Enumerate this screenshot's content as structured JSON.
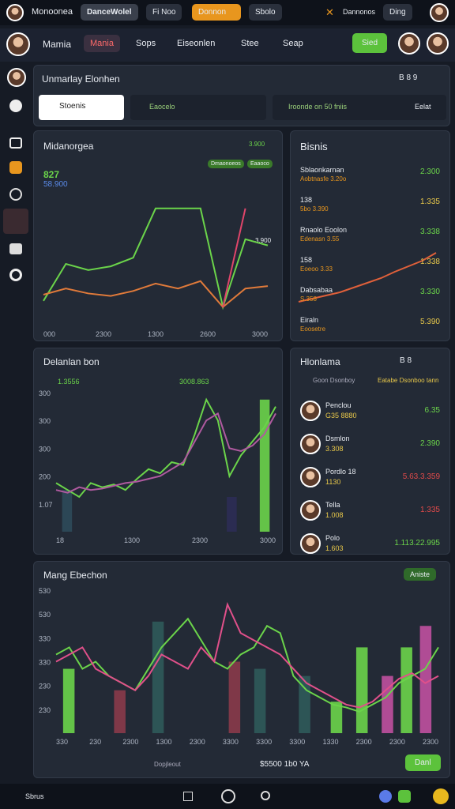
{
  "topbar": {
    "brand": "Monoonea",
    "tabs": [
      "DanceWolel",
      "Fi Noo",
      "Donnon",
      "Sbolo"
    ],
    "user": "Dannonos",
    "badge": "Ding"
  },
  "nav": {
    "items": [
      "Mamia",
      "Mania",
      "Sops",
      "Eiseonlen",
      "Stee",
      "Seap"
    ],
    "button": "Sied"
  },
  "panel": {
    "title": "Unmarlay Elonhen",
    "controls": "B 8 9",
    "dropdown": "Stoenis",
    "filter1": "Eaocelo",
    "filter2": "Iroonde on 50 fniis",
    "select": "Eelat"
  },
  "card1": {
    "title": "Midanorgea",
    "badge": "3.900",
    "legend": [
      "Dmaonoeos",
      "Eaaoco"
    ],
    "stat1": "827",
    "stat2": "58.900",
    "side_label": "3.900",
    "x_labels": [
      "000",
      "2300",
      "1300",
      "2600",
      "3000"
    ],
    "ylim": [
      0,
      100
    ],
    "xlim": [
      0,
      10
    ],
    "series": [
      {
        "color": "#6bd44a",
        "values": [
          20,
          50,
          45,
          48,
          55,
          95,
          95,
          95,
          15,
          70,
          65
        ]
      },
      {
        "color": "#e07a3a",
        "values": [
          25,
          30,
          26,
          24,
          28,
          34,
          30,
          36,
          15,
          30,
          32
        ]
      },
      {
        "color": "#e0456a",
        "values": [
          null,
          null,
          null,
          null,
          null,
          null,
          null,
          null,
          15,
          95,
          null
        ]
      }
    ]
  },
  "card2": {
    "title": "Bisnis",
    "rows": [
      {
        "label": "Sblaonkarnan",
        "sub": "Aobtnasfe 3.20o",
        "value": "2.300"
      },
      {
        "label": "138",
        "sub": "5bo 3.390",
        "value": "1.335"
      },
      {
        "label": "Rnaolo Eoolon",
        "sub": "Edenasn 3.55",
        "value": "3.338"
      },
      {
        "label": "158",
        "sub": "Eoeoo 3.33",
        "value": "1.338"
      },
      {
        "label": "Dabsabaa",
        "sub": "S.358",
        "value": "3.330"
      },
      {
        "label": "Eiraln",
        "sub": "Eoosetre",
        "value": "5.390"
      }
    ],
    "ylim": [
      0,
      100
    ],
    "xlim": [
      0,
      10
    ],
    "series": [
      {
        "color": "#e0603a",
        "values": [
          10,
          14,
          18,
          22,
          28,
          34,
          40,
          48,
          55,
          62,
          72
        ]
      }
    ]
  },
  "card3": {
    "title": "Delanlan bon",
    "chip1": "1.3556",
    "chip2": "3008.863",
    "y_labels": [
      "300",
      "300",
      "300",
      "200",
      "1.07"
    ],
    "x_labels": [
      "18",
      "1300",
      "2300",
      "3000"
    ],
    "ylim": [
      0,
      100
    ],
    "xlim": [
      0,
      20
    ],
    "series": [
      {
        "color": "#6bd44a",
        "values": [
          35,
          30,
          25,
          35,
          32,
          34,
          30,
          38,
          45,
          42,
          50,
          48,
          70,
          95,
          80,
          40,
          55,
          65,
          75,
          90
        ]
      },
      {
        "color": "#b05aa0",
        "values": [
          30,
          28,
          32,
          30,
          31,
          33,
          35,
          36,
          38,
          40,
          45,
          50,
          65,
          80,
          85,
          60,
          58,
          62,
          70,
          85
        ]
      }
    ],
    "bars": [
      {
        "x": 1,
        "value": 30,
        "color": "#2d4a5a"
      },
      {
        "x": 16,
        "value": 25,
        "color": "#2c2c55"
      },
      {
        "x": 19,
        "value": 95,
        "color": "#6bd44a"
      }
    ]
  },
  "card4": {
    "title": "Hlonlama",
    "controls": "B 8",
    "header1": "Goon Dsonboy",
    "header2": "Eatabe Dsonboo tann",
    "rows": [
      {
        "name": "Penclou",
        "sub": "G35 8880",
        "value": "6.35",
        "color": "#6bd44a"
      },
      {
        "name": "Dsmlon",
        "sub": "3.308",
        "value": "2.390",
        "color": "#6bd44a"
      },
      {
        "name": "Pordlo 18",
        "sub": "1130",
        "value": "5.63.3.359",
        "color": "#e04a4a"
      },
      {
        "name": "Tella",
        "sub": "1.008",
        "value": "1.335",
        "color": "#e04a4a"
      },
      {
        "name": "Polo",
        "sub": "1.603",
        "value": "1.113.22.995",
        "color": "#6bd44a"
      }
    ]
  },
  "card5": {
    "title": "Mang Ebechon",
    "button": "Aniste",
    "y_labels": [
      "530",
      "530",
      "330",
      "330",
      "230",
      "230"
    ],
    "x_labels": [
      "330",
      "230",
      "2300",
      "1300",
      "2300",
      "3300",
      "3300",
      "3300",
      "1330",
      "2300",
      "2300",
      "2300"
    ],
    "footer": "Dopjleout",
    "total": "$5500 1b0 YA",
    "action": "Danl",
    "ylim": [
      0,
      100
    ],
    "xlim": [
      0,
      30
    ],
    "series": [
      {
        "color": "#6bd44a",
        "values": [
          55,
          60,
          45,
          50,
          40,
          35,
          30,
          45,
          60,
          70,
          80,
          65,
          50,
          45,
          55,
          60,
          75,
          70,
          40,
          30,
          25,
          20,
          18,
          15,
          20,
          25,
          35,
          40,
          45,
          60
        ]
      },
      {
        "color": "#e0508a",
        "values": [
          50,
          55,
          60,
          45,
          40,
          35,
          30,
          40,
          55,
          50,
          45,
          60,
          50,
          90,
          70,
          65,
          60,
          55,
          45,
          35,
          30,
          25,
          20,
          18,
          22,
          30,
          38,
          42,
          35,
          40
        ]
      }
    ],
    "bars": [
      {
        "x": 1,
        "value": 45,
        "color": "#6bd44a"
      },
      {
        "x": 5,
        "value": 30,
        "color": "#8a3a4a"
      },
      {
        "x": 8,
        "value": 78,
        "color": "#2f5a5a"
      },
      {
        "x": 14,
        "value": 50,
        "color": "#8a3a4a"
      },
      {
        "x": 16,
        "value": 45,
        "color": "#2f5a5a"
      },
      {
        "x": 19.5,
        "value": 40,
        "color": "#2f5a5a"
      },
      {
        "x": 22,
        "value": 22,
        "color": "#6bd44a"
      },
      {
        "x": 24,
        "value": 60,
        "color": "#6bd44a"
      },
      {
        "x": 26,
        "value": 40,
        "color": "#c050a0"
      },
      {
        "x": 27.5,
        "value": 60,
        "color": "#6bd44a"
      },
      {
        "x": 29,
        "value": 75,
        "color": "#c050a0"
      }
    ]
  },
  "bottombar": {
    "label": "Sbrus"
  }
}
